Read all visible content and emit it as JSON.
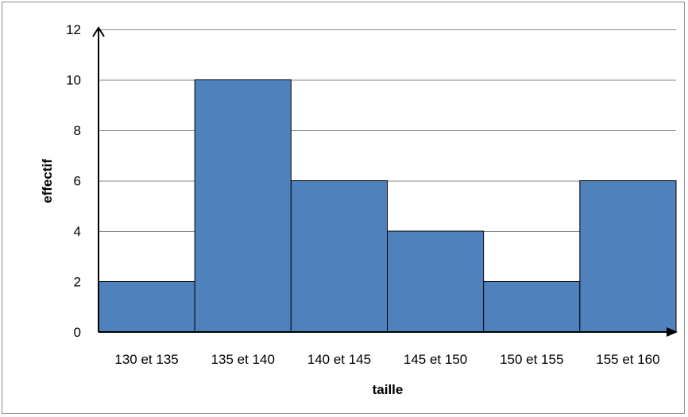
{
  "chart_data": {
    "type": "bar",
    "categories": [
      "130 et 135",
      "135 et 140",
      "140 et 145",
      "145 et 150",
      "150 et 155",
      "155 et 160"
    ],
    "values": [
      2,
      10,
      6,
      4,
      2,
      6
    ],
    "xlabel": "taille",
    "ylabel": "effectif",
    "ylim": [
      0,
      12
    ],
    "yticks": [
      "0",
      "2",
      "4",
      "6",
      "8",
      "10",
      "12"
    ],
    "grid": true,
    "legend": "none",
    "colors": {
      "bar": "#4f81bd",
      "bar_edge": "#000000",
      "grid": "#868686",
      "axis": "#000000"
    }
  }
}
